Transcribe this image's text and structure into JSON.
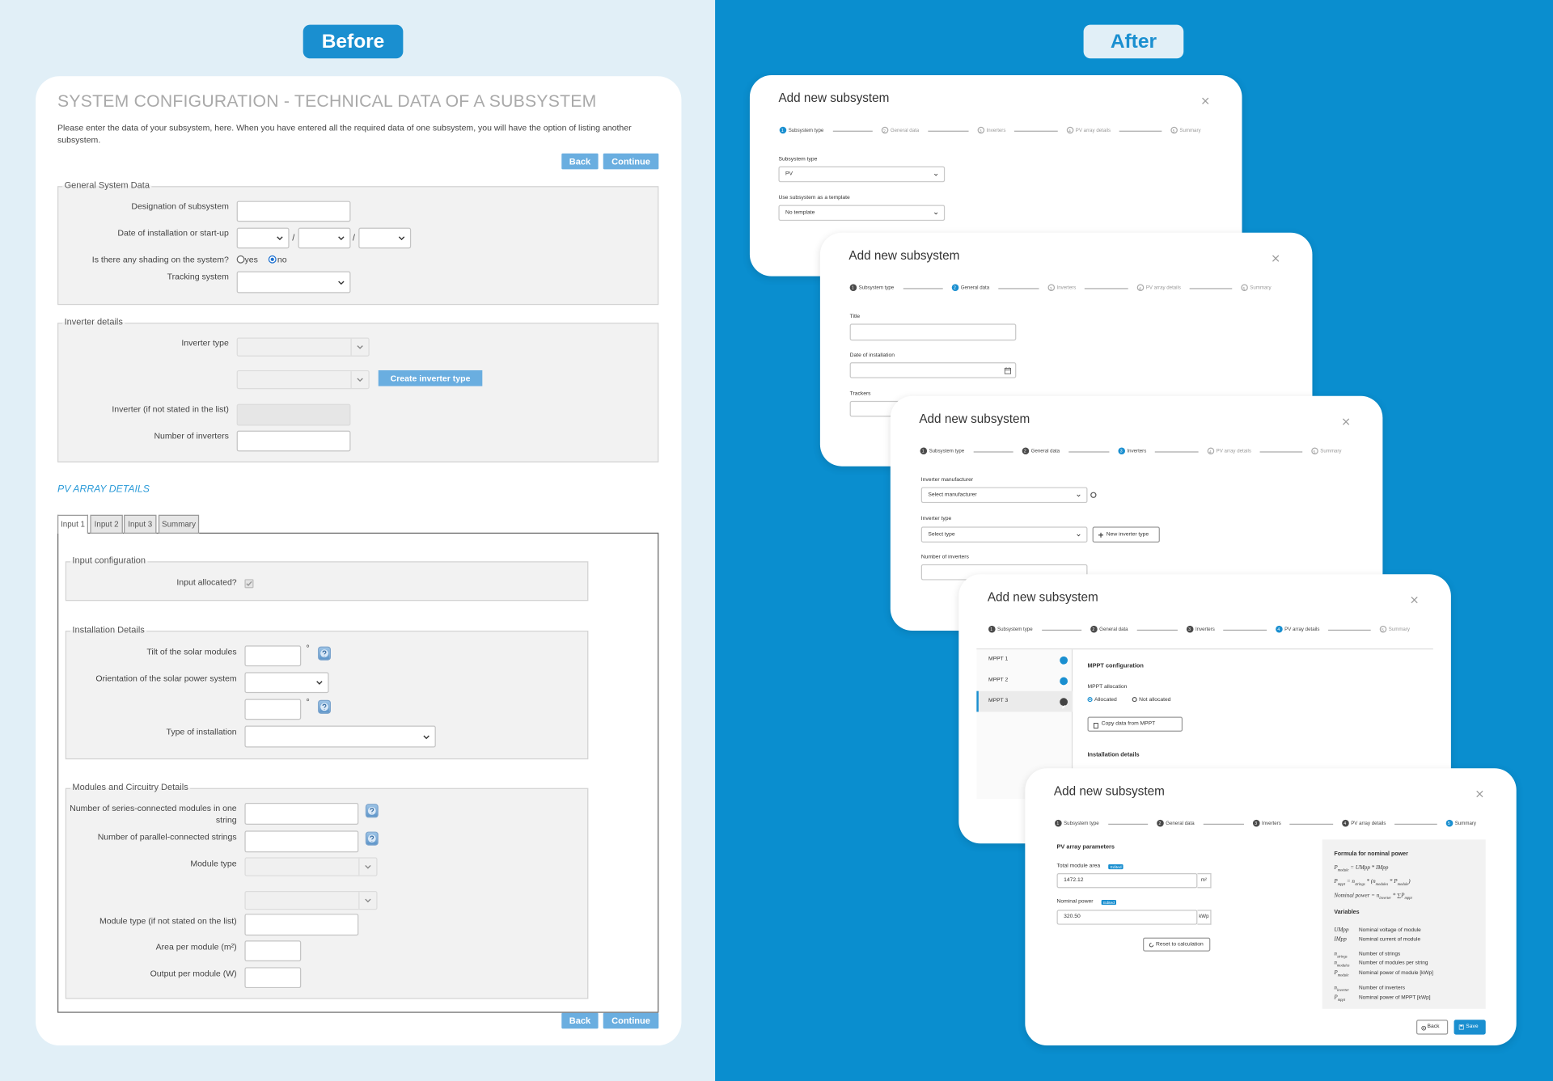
{
  "before": {
    "badge": "Before",
    "title": "SYSTEM CONFIGURATION - TECHNICAL DATA OF A SUBSYSTEM",
    "intro": "Please enter the data of your subsystem, here. When you have entered all the required data of one subsystem, you will have the option of listing another subsystem.",
    "back": "Back",
    "continue": "Continue",
    "general": {
      "legend": "General System Data",
      "designation": "Designation of subsystem",
      "date": "Date of installation or start-up",
      "date_separator": "/",
      "shading": "Is there any shading on the system?",
      "yes": "yes",
      "no": "no",
      "tracking": "Tracking system"
    },
    "inverter": {
      "legend": "Inverter details",
      "type": "Inverter type",
      "create": "Create inverter type",
      "other": "Inverter (if not stated in the list)",
      "count": "Number of inverters"
    },
    "pv_title": "PV ARRAY DETAILS",
    "tabs": [
      "Input 1",
      "Input 2",
      "Input 3",
      "Summary"
    ],
    "input_config": {
      "legend": "Input configuration",
      "allocated": "Input allocated?"
    },
    "installation": {
      "legend": "Installation Details",
      "tilt": "Tilt of the solar modules",
      "orientation": "Orientation of the solar power system",
      "degree": "°",
      "type": "Type of installation"
    },
    "modules": {
      "legend": "Modules and Circuitry Details",
      "series": "Number of series-connected modules in one string",
      "parallel": "Number of parallel-connected strings",
      "module_type": "Module type",
      "module_other": "Module type (if not stated on the list)",
      "area": "Area per module (m²)",
      "output": "Output per module (W)"
    }
  },
  "after": {
    "badge": "After",
    "modal_title": "Add new subsystem",
    "steps": [
      {
        "number": 1,
        "label": "Subsystem type"
      },
      {
        "number": 2,
        "label": "General data"
      },
      {
        "number": 3,
        "label": "Inverters"
      },
      {
        "number": 4,
        "label": "PV array details"
      },
      {
        "number": 5,
        "label": "Summary"
      }
    ],
    "type_step": {
      "subsystem_type": "Subsystem type",
      "subsystem_value": "PV",
      "template": "Use subsystem as a template",
      "template_value": "No template"
    },
    "general_step": {
      "title": "Title",
      "date": "Date of installation",
      "trackers": "Trackers"
    },
    "inverter_step": {
      "manufacturer": "Inverter manufacturer",
      "manufacturer_placeholder": "Select manufacturer",
      "type": "Inverter type",
      "type_placeholder": "Select type",
      "new_type": "New inverter type",
      "count": "Number of inverters"
    },
    "pv_step": {
      "mppts": [
        "MPPT 1",
        "MPPT 2",
        "MPPT 3"
      ],
      "configuration": "MPPT configuration",
      "allocation": "MPPT allocation",
      "allocated": "Allocated",
      "not_allocated": "Not allocated",
      "copy": "Copy data from MPPT",
      "installation": "Installation details"
    },
    "summary_step": {
      "heading": "PV array parameters",
      "area": "Total module area",
      "edited": "Edited",
      "area_value": "1472.12",
      "area_unit": "m²",
      "power": "Nominal power",
      "power_value": "320.50",
      "power_unit": "kWp",
      "reset": "Reset to calculation",
      "formula_heading": "Formula for nominal power",
      "formulas": [
        [
          {
            "text": "P",
            "sub": "module"
          },
          {
            "text": " = UMpp * IMpp"
          }
        ],
        [
          {
            "text": "P",
            "sub": "mppt"
          },
          {
            "text": " = n",
            "sub": "strings"
          },
          {
            "text": " * (n",
            "sub": "modules"
          },
          {
            "text": " * P",
            "sub": "module"
          },
          {
            "text": ")"
          }
        ],
        [
          {
            "text": "Nominal power = n",
            "sub": "inverter"
          },
          {
            "text": " * ∑P",
            "sub": "mppt"
          }
        ]
      ],
      "variables_heading": "Variables",
      "variables": [
        {
          "symbol": "UMpp",
          "description": "Nominal voltage of module"
        },
        {
          "symbol": "IMpp",
          "description": "Nominal current of module"
        },
        {
          "symbol": "n",
          "sub": "strings",
          "description": "Number of strings"
        },
        {
          "symbol": "n",
          "sub": "modules",
          "description": "Number of modules per string"
        },
        {
          "symbol": "P",
          "sub": "module",
          "description": "Nominal power of module [kWp]"
        },
        {
          "symbol": "n",
          "sub": "inverter",
          "description": "Number of inverters"
        },
        {
          "symbol": "P",
          "sub": "mppt",
          "description": "Nominal power of MPPT [kWp]"
        }
      ],
      "back": "Back",
      "save": "Save"
    }
  }
}
